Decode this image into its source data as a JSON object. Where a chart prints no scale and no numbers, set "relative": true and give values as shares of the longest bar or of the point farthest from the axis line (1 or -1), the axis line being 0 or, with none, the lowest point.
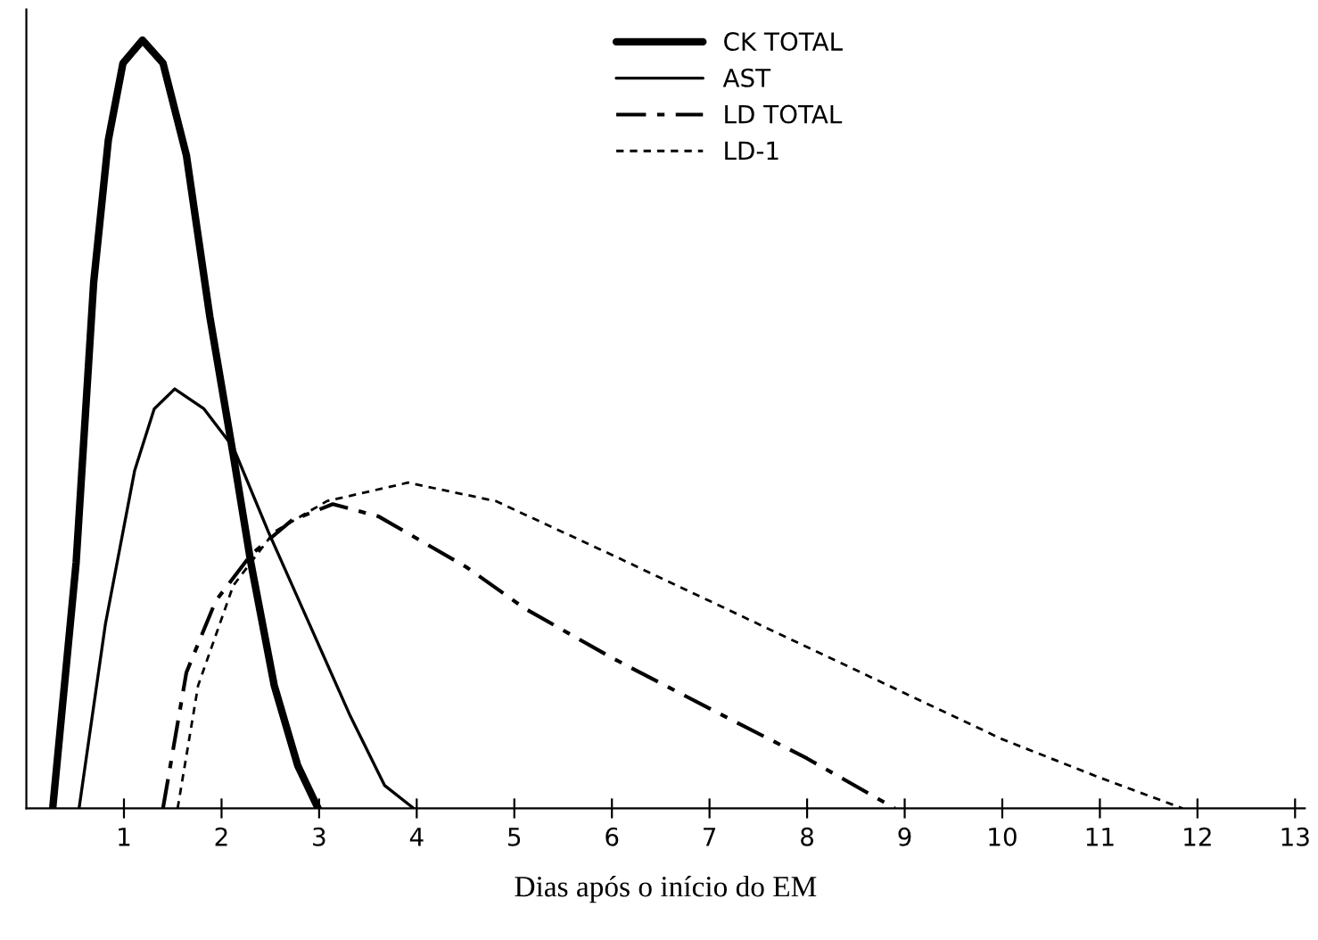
{
  "chart_data": {
    "type": "line",
    "xlabel": "Dias após o início do EM",
    "relative": true,
    "xlim": [
      0,
      13.1
    ],
    "xticks": [
      1,
      2,
      3,
      4,
      5,
      6,
      7,
      8,
      9,
      10,
      11,
      12,
      13
    ],
    "tick_labels": "x",
    "legend": "top",
    "grid": false,
    "series": [
      {
        "name": "CK TOTAL",
        "color": "#000000",
        "line_style": "solid",
        "x": [
          0.27,
          0.51,
          0.69,
          0.84,
          0.99,
          1.19,
          1.4,
          1.64,
          1.88,
          2.12,
          2.3,
          2.54,
          2.78,
          2.99
        ],
        "values": [
          0,
          0.32,
          0.685,
          0.87,
          0.97,
          1.0,
          0.97,
          0.85,
          0.64,
          0.46,
          0.32,
          0.16,
          0.056,
          0
        ]
      },
      {
        "name": "AST",
        "color": "#000000",
        "line_style": "solid",
        "x": [
          0.54,
          0.81,
          1.11,
          1.31,
          1.52,
          1.82,
          2.12,
          2.48,
          2.9,
          3.32,
          3.67,
          3.97
        ],
        "values": [
          0,
          0.24,
          0.44,
          0.52,
          0.546,
          0.52,
          0.47,
          0.36,
          0.24,
          0.12,
          0.03,
          0
        ]
      },
      {
        "name": "LD TOTAL",
        "color": "#000000",
        "line_style": "dashdot",
        "x": [
          1.4,
          1.64,
          1.94,
          2.3,
          2.72,
          3.14,
          3.61,
          4.51,
          5.11,
          6,
          7,
          8,
          8.9
        ],
        "values": [
          0,
          0.177,
          0.27,
          0.33,
          0.375,
          0.396,
          0.38,
          0.314,
          0.26,
          0.196,
          0.13,
          0.065,
          0
        ]
      },
      {
        "name": "LD-1",
        "color": "#000000",
        "line_style": "dotted",
        "x": [
          1.55,
          1.76,
          2.12,
          2.54,
          3.08,
          3.91,
          4.81,
          6,
          7,
          8,
          9,
          10,
          11,
          11.85
        ],
        "values": [
          0,
          0.16,
          0.29,
          0.36,
          0.4,
          0.424,
          0.4,
          0.33,
          0.27,
          0.21,
          0.15,
          0.09,
          0.04,
          0
        ]
      }
    ]
  }
}
